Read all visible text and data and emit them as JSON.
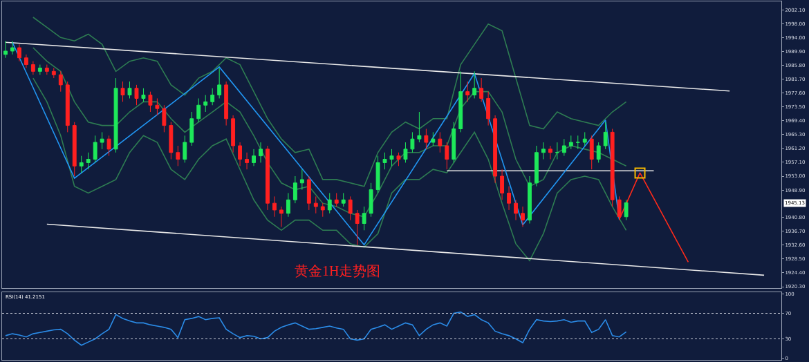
{
  "chart_data": [
    {
      "type": "candlestick",
      "categories": [
        null,
        null,
        null,
        null,
        null,
        null,
        null,
        null,
        null,
        null,
        null,
        null,
        null,
        null,
        null,
        null,
        null,
        null,
        null,
        null,
        null,
        null,
        null,
        null,
        null,
        null,
        null,
        null,
        null,
        null,
        null,
        null,
        null,
        null,
        null,
        null,
        null,
        null,
        null,
        null,
        null,
        null,
        null,
        null,
        null,
        null,
        null,
        null,
        null,
        null,
        null,
        null,
        null,
        null,
        null,
        null,
        null,
        null,
        null,
        null,
        null,
        null,
        null,
        null,
        null,
        null,
        null,
        null,
        null,
        null,
        null,
        null,
        null,
        null,
        null,
        null,
        null,
        null,
        null,
        null,
        null,
        null,
        null,
        null,
        null,
        null,
        null,
        null,
        null,
        null,
        null,
        null,
        null,
        null,
        null,
        null,
        null,
        null,
        null,
        null,
        null,
        null,
        null,
        null,
        null,
        null,
        null,
        null,
        null,
        null,
        null
      ],
      "ohlc": [
        [
          1989,
          1993,
          1988,
          1990
        ],
        [
          1990,
          1993,
          1989,
          1991
        ],
        [
          1991,
          1992,
          1987,
          1988
        ],
        [
          1988,
          1989,
          1985,
          1986
        ],
        [
          1986,
          1987,
          1983,
          1984
        ],
        [
          1984,
          1986,
          1983,
          1985
        ],
        [
          1985,
          1986,
          1983,
          1984
        ],
        [
          1984,
          1985,
          1982,
          1983
        ],
        [
          1983,
          1984,
          1978,
          1980
        ],
        [
          1980,
          1981,
          1966,
          1968
        ],
        [
          1968,
          1969,
          1953,
          1956
        ],
        [
          1956,
          1959,
          1954,
          1957
        ],
        [
          1957,
          1960,
          1955,
          1958
        ],
        [
          1958,
          1965,
          1957,
          1963
        ],
        [
          1963,
          1966,
          1961,
          1964
        ],
        [
          1964,
          1965,
          1959,
          1961
        ],
        [
          1961,
          1982,
          1960,
          1979
        ],
        [
          1979,
          1981,
          1975,
          1977
        ],
        [
          1977,
          1981,
          1976,
          1979
        ],
        [
          1979,
          1980,
          1974,
          1976
        ],
        [
          1976,
          1979,
          1975,
          1977
        ],
        [
          1977,
          1978,
          1972,
          1974
        ],
        [
          1974,
          1976,
          1971,
          1973
        ],
        [
          1973,
          1974,
          1966,
          1968
        ],
        [
          1968,
          1969,
          1958,
          1960
        ],
        [
          1960,
          1962,
          1956,
          1958
        ],
        [
          1958,
          1965,
          1957,
          1963
        ],
        [
          1963,
          1972,
          1962,
          1970
        ],
        [
          1970,
          1976,
          1969,
          1974
        ],
        [
          1974,
          1977,
          1972,
          1975
        ],
        [
          1975,
          1979,
          1974,
          1977
        ],
        [
          1977,
          1985,
          1976,
          1980
        ],
        [
          1980,
          1981,
          1968,
          1970
        ],
        [
          1970,
          1971,
          1960,
          1962
        ],
        [
          1962,
          1963,
          1956,
          1958
        ],
        [
          1958,
          1960,
          1955,
          1957
        ],
        [
          1957,
          1961,
          1956,
          1959
        ],
        [
          1959,
          1963,
          1957,
          1961
        ],
        [
          1961,
          1962,
          1943,
          1945
        ],
        [
          1945,
          1947,
          1941,
          1943
        ],
        [
          1943,
          1944,
          1938,
          1942
        ],
        [
          1942,
          1948,
          1941,
          1946
        ],
        [
          1946,
          1953,
          1945,
          1951
        ],
        [
          1951,
          1955,
          1949,
          1952
        ],
        [
          1952,
          1953,
          1943,
          1945
        ],
        [
          1945,
          1947,
          1942,
          1944
        ],
        [
          1944,
          1945,
          1941,
          1943
        ],
        [
          1943,
          1948,
          1942,
          1946
        ],
        [
          1946,
          1948,
          1944,
          1945
        ],
        [
          1945,
          1948,
          1944,
          1946
        ],
        [
          1946,
          1947,
          1940,
          1942
        ],
        [
          1942,
          1943,
          1932.6,
          1939
        ],
        [
          1939,
          1944,
          1937,
          1942
        ],
        [
          1942,
          1951,
          1941,
          1949
        ],
        [
          1949,
          1959,
          1948,
          1957
        ],
        [
          1957,
          1960,
          1955,
          1958
        ],
        [
          1958,
          1961,
          1956,
          1959
        ],
        [
          1959,
          1960,
          1956,
          1958
        ],
        [
          1958,
          1963,
          1957,
          1961
        ],
        [
          1961,
          1966,
          1960,
          1964
        ],
        [
          1964,
          1972,
          1963,
          1965
        ],
        [
          1965,
          1967,
          1961,
          1963
        ],
        [
          1963,
          1966,
          1962,
          1964
        ],
        [
          1964,
          1966,
          1960,
          1962
        ],
        [
          1962,
          1963,
          1955,
          1958
        ],
        [
          1958,
          1969,
          1957,
          1967
        ],
        [
          1967,
          1984,
          1966,
          1978
        ],
        [
          1978,
          1981,
          1975,
          1977
        ],
        [
          1977,
          1984,
          1976,
          1979
        ],
        [
          1979,
          1982,
          1975,
          1976
        ],
        [
          1976,
          1978,
          1968,
          1970
        ],
        [
          1970,
          1971,
          1951,
          1953
        ],
        [
          1953,
          1955,
          1946,
          1948
        ],
        [
          1948,
          1950,
          1943,
          1945
        ],
        [
          1945,
          1946,
          1940,
          1942
        ],
        [
          1942,
          1944,
          1938,
          1940
        ],
        [
          1940,
          1953,
          1939,
          1951
        ],
        [
          1951,
          1962,
          1950,
          1960
        ],
        [
          1960,
          1963,
          1958,
          1961
        ],
        [
          1961,
          1962,
          1958,
          1960
        ],
        [
          1960,
          1963,
          1958,
          1960
        ],
        [
          1960,
          1964,
          1959,
          1962
        ],
        [
          1962,
          1965,
          1961,
          1963
        ],
        [
          1963,
          1965,
          1961,
          1963
        ],
        [
          1963,
          1966,
          1962,
          1964
        ],
        [
          1964,
          1965,
          1955,
          1958
        ],
        [
          1958,
          1963,
          1957,
          1962
        ],
        [
          1962,
          1969,
          1961,
          1966
        ],
        [
          1966,
          1967,
          1944,
          1946
        ],
        [
          1946,
          1947,
          1940,
          1941
        ],
        [
          1941,
          1946,
          1940,
          1945.13
        ],
        null,
        null,
        null,
        null,
        null,
        null,
        null,
        null,
        null,
        null,
        null,
        null,
        null,
        null,
        null,
        null,
        null,
        null,
        null,
        null
      ],
      "colors": [
        "#1ee85a",
        "#1ee85a",
        "#ff2020",
        "#ff2020",
        "#ff2020",
        "#1ee85a",
        "#ff2020",
        "#ff2020",
        "#ff2020",
        "#ff2020",
        "#ff2020",
        "#1ee85a",
        "#1ee85a",
        "#1ee85a",
        "#1ee85a",
        "#ff2020",
        "#1ee85a",
        "#ff2020",
        "#1ee85a",
        "#ff2020",
        "#1ee85a",
        "#ff2020",
        "#ff2020",
        "#ff2020",
        "#ff2020",
        "#ff2020",
        "#1ee85a",
        "#1ee85a",
        "#1ee85a",
        "#1ee85a",
        "#1ee85a",
        "#1ee85a",
        "#ff2020",
        "#ff2020",
        "#ff2020",
        "#ff2020",
        "#1ee85a",
        "#1ee85a",
        "#ff2020",
        "#ff2020",
        "#ff2020",
        "#1ee85a",
        "#1ee85a",
        "#1ee85a",
        "#ff2020",
        "#ff2020",
        "#ff2020",
        "#1ee85a",
        "#ff2020",
        "#1ee85a",
        "#ff2020",
        "#ff2020",
        "#1ee85a",
        "#1ee85a",
        "#1ee85a",
        "#1ee85a",
        "#1ee85a",
        "#ff2020",
        "#1ee85a",
        "#1ee85a",
        "#1ee85a",
        "#ff2020",
        "#1ee85a",
        "#ff2020",
        "#ff2020",
        "#1ee85a",
        "#1ee85a",
        "#ff2020",
        "#1ee85a",
        "#ff2020",
        "#ff2020",
        "#ff2020",
        "#ff2020",
        "#ff2020",
        "#ff2020",
        "#ff2020",
        "#1ee85a",
        "#1ee85a",
        "#1ee85a",
        "#ff2020",
        "#1ee85a",
        "#1ee85a",
        "#1ee85a",
        "#1ee85a",
        "#1ee85a",
        "#ff2020",
        "#1ee85a",
        "#1ee85a",
        "#ff2020",
        "#ff2020",
        "#1ee85a",
        null,
        null,
        null,
        null,
        null,
        null,
        null,
        null,
        null,
        null,
        null,
        null,
        null,
        null,
        null,
        null,
        null,
        null,
        null,
        null
      ],
      "series": [
        {
          "type": "line",
          "color": "#2e7d52",
          "values": [
            null,
            null,
            null,
            null,
            2000,
            null,
            1997,
            null,
            1994,
            null,
            1993,
            null,
            1995,
            null,
            1992,
            null,
            1984,
            null,
            1987,
            null,
            1988,
            null,
            1987,
            null,
            1980,
            null,
            1977,
            null,
            1982,
            null,
            1984,
            null,
            1988,
            null,
            1986,
            null,
            1978,
            null,
            1970,
            null,
            1964,
            null,
            1960,
            null,
            1961,
            null,
            1952,
            null,
            1952,
            null,
            1951,
            null,
            1950,
            null,
            1960,
            null,
            1966,
            null,
            1969,
            null,
            1967,
            null,
            1970,
            null,
            1970,
            null,
            1986,
            null,
            1992,
            null,
            1998,
            null,
            1996,
            null,
            1982,
            null,
            1968,
            null,
            1967,
            null,
            1972,
            null,
            1970,
            null,
            1969,
            null,
            1968,
            null,
            1972,
            null,
            1975,
            null,
            null,
            null,
            null,
            null,
            null,
            null,
            null,
            null,
            null,
            null,
            null,
            null,
            null,
            null,
            null,
            null,
            null,
            null,
            null
          ]
        },
        {
          "type": "line",
          "color": "#2e7d52",
          "values": [
            null,
            null,
            null,
            null,
            1991,
            null,
            1987,
            null,
            1984,
            null,
            1975,
            null,
            1969,
            null,
            1968,
            null,
            1968,
            null,
            1972,
            null,
            1975,
            null,
            1975,
            null,
            1970,
            null,
            1966,
            null,
            1969,
            null,
            1972,
            null,
            1975,
            null,
            1972,
            null,
            1965,
            null,
            1957,
            null,
            1951,
            null,
            1949,
            null,
            1950,
            null,
            1945,
            null,
            1944,
            null,
            1942,
            null,
            1941,
            null,
            1948,
            null,
            1956,
            null,
            1960,
            null,
            1960,
            null,
            1962,
            null,
            1962,
            null,
            1973,
            null,
            1978,
            null,
            1978,
            null,
            1972,
            null,
            1958,
            null,
            1950,
            null,
            1952,
            null,
            1960,
            null,
            1962,
            null,
            1961,
            null,
            1960,
            null,
            1958,
            null,
            1956,
            null,
            null,
            null,
            null,
            null,
            null,
            null,
            null,
            null,
            null,
            null,
            null,
            null,
            null,
            null,
            null,
            null,
            null,
            null,
            null
          ]
        },
        {
          "type": "line",
          "color": "#2e7d52",
          "values": [
            null,
            null,
            null,
            null,
            1982,
            null,
            1975,
            null,
            1965,
            null,
            1950,
            null,
            1948,
            null,
            1950,
            null,
            1952,
            null,
            1960,
            null,
            1965,
            null,
            1963,
            null,
            1955,
            null,
            1952,
            null,
            1958,
            null,
            1962,
            null,
            1964,
            null,
            1955,
            null,
            1946,
            null,
            1940,
            null,
            1937,
            null,
            1940,
            null,
            1940,
            null,
            1937,
            null,
            1937,
            null,
            1933,
            null,
            1932,
            null,
            1936,
            null,
            1948,
            null,
            1952,
            null,
            1952,
            null,
            1955,
            null,
            1954,
            null,
            1960,
            null,
            1966,
            null,
            1958,
            null,
            1945,
            null,
            1933,
            null,
            1928,
            null,
            1936,
            null,
            1948,
            null,
            1952,
            null,
            1953,
            null,
            1952,
            null,
            1944,
            null,
            1937,
            null,
            null,
            null,
            null,
            null,
            null,
            null,
            null,
            null,
            null,
            null,
            null,
            null,
            null,
            null,
            null,
            null,
            null,
            null,
            null
          ]
        },
        {
          "type": "line",
          "color": "#e8e8e8",
          "values": [
            1992.6,
            null,
            null,
            null,
            null,
            null,
            null,
            null,
            null,
            null,
            null,
            null,
            null,
            null,
            null,
            null,
            null,
            null,
            null,
            null,
            null,
            null,
            null,
            null,
            null,
            null,
            null,
            null,
            null,
            null,
            null,
            null,
            null,
            null,
            null,
            null,
            null,
            null,
            null,
            null,
            null,
            null,
            null,
            null,
            null,
            null,
            null,
            null,
            null,
            null,
            null,
            null,
            null,
            null,
            null,
            null,
            null,
            null,
            null,
            null,
            null,
            null,
            null,
            null,
            null,
            null,
            null,
            null,
            null,
            null,
            null,
            null,
            null,
            null,
            null,
            null,
            null,
            null,
            null,
            null,
            null,
            null,
            null,
            null,
            null,
            null,
            null,
            null,
            null,
            null,
            null,
            null,
            null,
            null,
            null,
            null,
            null,
            null,
            null,
            null,
            null,
            null,
            null,
            null,
            null,
            1978.2,
            null,
            null,
            null,
            null,
            null
          ]
        },
        {
          "type": "line",
          "color": "#e8e8e8",
          "values": [
            null,
            null,
            null,
            null,
            null,
            null,
            1938.8,
            null,
            null,
            null,
            null,
            null,
            null,
            null,
            null,
            null,
            null,
            null,
            null,
            null,
            null,
            null,
            null,
            null,
            null,
            null,
            null,
            null,
            null,
            null,
            null,
            null,
            null,
            null,
            null,
            null,
            null,
            null,
            null,
            null,
            null,
            null,
            null,
            null,
            null,
            null,
            null,
            null,
            null,
            null,
            null,
            null,
            null,
            null,
            null,
            null,
            null,
            null,
            null,
            null,
            null,
            null,
            null,
            null,
            null,
            null,
            null,
            null,
            null,
            null,
            null,
            null,
            null,
            null,
            null,
            null,
            null,
            null,
            null,
            null,
            null,
            null,
            null,
            null,
            null,
            null,
            null,
            null,
            null,
            null,
            null,
            null,
            null,
            null,
            null,
            null,
            null,
            null,
            null,
            null,
            null,
            null,
            null,
            null,
            null,
            null,
            null,
            null,
            null,
            null,
            1923.7
          ]
        },
        {
          "type": "line",
          "color": "#e8e8e8",
          "values": [
            null,
            null,
            null,
            null,
            null,
            null,
            null,
            null,
            null,
            null,
            null,
            null,
            null,
            null,
            null,
            null,
            null,
            null,
            null,
            null,
            null,
            null,
            null,
            null,
            null,
            null,
            null,
            null,
            null,
            null,
            null,
            null,
            null,
            null,
            null,
            null,
            null,
            null,
            null,
            null,
            null,
            null,
            null,
            null,
            null,
            null,
            null,
            null,
            null,
            null,
            null,
            null,
            null,
            null,
            null,
            null,
            null,
            null,
            null,
            null,
            null,
            null,
            null,
            null,
            1954.6,
            null,
            null,
            null,
            null,
            null,
            null,
            null,
            null,
            null,
            null,
            null,
            null,
            null,
            null,
            null,
            null,
            null,
            null,
            null,
            null,
            null,
            null,
            null,
            null,
            null,
            null,
            null,
            null,
            null,
            1954.6,
            null,
            null,
            null,
            null,
            null,
            null,
            null,
            null,
            null,
            null,
            null,
            null,
            null,
            null,
            null,
            null
          ]
        },
        {
          "type": "line",
          "color": "#2196f3",
          "values": [
            null,
            1992.6,
            null,
            null,
            null,
            null,
            null,
            null,
            null,
            null,
            1952.4,
            null,
            null,
            null,
            null,
            null,
            null,
            null,
            null,
            null,
            null,
            null,
            null,
            null,
            null,
            null,
            null,
            null,
            null,
            null,
            null,
            1985.3,
            null,
            null,
            null,
            null,
            null,
            null,
            null,
            null,
            null,
            null,
            null,
            null,
            null,
            null,
            null,
            null,
            null,
            null,
            null,
            null,
            1932.7,
            null,
            null,
            null,
            null,
            null,
            null,
            null,
            null,
            null,
            null,
            null,
            null,
            null,
            null,
            null,
            1983.4,
            null,
            null,
            null,
            null,
            null,
            null,
            1938.6,
            null,
            null,
            null,
            null,
            null,
            null,
            null,
            null,
            null,
            null,
            null,
            1969.6,
            null,
            1940.2,
            null,
            null,
            null,
            null,
            null,
            null,
            null,
            null,
            null,
            null,
            null,
            null,
            null,
            null,
            null,
            null,
            null,
            null,
            null,
            null,
            null
          ]
        },
        {
          "type": "line",
          "color": "#ff2a1a",
          "values": [
            null,
            null,
            null,
            null,
            null,
            null,
            null,
            null,
            null,
            null,
            null,
            null,
            null,
            null,
            null,
            null,
            null,
            null,
            null,
            null,
            null,
            null,
            null,
            null,
            null,
            null,
            null,
            null,
            null,
            null,
            null,
            null,
            null,
            null,
            null,
            null,
            null,
            null,
            null,
            null,
            null,
            null,
            null,
            null,
            null,
            null,
            null,
            null,
            null,
            null,
            null,
            null,
            null,
            null,
            null,
            null,
            null,
            null,
            null,
            null,
            null,
            null,
            null,
            null,
            null,
            null,
            null,
            null,
            null,
            null,
            null,
            null,
            null,
            null,
            null,
            null,
            null,
            null,
            null,
            null,
            null,
            null,
            null,
            null,
            null,
            null,
            null,
            null,
            null,
            1940.2,
            null,
            null,
            1954.0,
            null,
            null,
            null,
            null,
            null,
            null,
            1927.6,
            null,
            null,
            null,
            null,
            null,
            null,
            null,
            null,
            null,
            null,
            null
          ]
        },
        {
          "type": "scatter",
          "marker": "square",
          "color": "#f5b800",
          "values": [
            null,
            null,
            null,
            null,
            null,
            null,
            null,
            null,
            null,
            null,
            null,
            null,
            null,
            null,
            null,
            null,
            null,
            null,
            null,
            null,
            null,
            null,
            null,
            null,
            null,
            null,
            null,
            null,
            null,
            null,
            null,
            null,
            null,
            null,
            null,
            null,
            null,
            null,
            null,
            null,
            null,
            null,
            null,
            null,
            null,
            null,
            null,
            null,
            null,
            null,
            null,
            null,
            null,
            null,
            null,
            null,
            null,
            null,
            null,
            null,
            null,
            null,
            null,
            null,
            null,
            null,
            null,
            null,
            null,
            null,
            null,
            null,
            null,
            null,
            null,
            null,
            null,
            null,
            null,
            null,
            null,
            null,
            null,
            null,
            null,
            null,
            null,
            null,
            null,
            null,
            null,
            null,
            1953.9,
            null,
            null,
            null,
            null,
            null,
            null,
            null,
            null,
            null,
            null,
            null,
            null,
            null,
            null,
            null,
            null,
            null,
            null
          ]
        }
      ],
      "ylim": [
        1919.9,
        2004.7
      ],
      "yticks": [
        {
          "value": 2002.1,
          "label": "2002.10"
        },
        {
          "value": 1998,
          "label": "1998.00"
        },
        {
          "value": 1994,
          "label": "1994.00"
        },
        {
          "value": 1989.9,
          "label": "1989.90"
        },
        {
          "value": 1985.8,
          "label": "1985.80"
        },
        {
          "value": 1981.7,
          "label": "1981.70"
        },
        {
          "value": 1977.6,
          "label": "1977.60"
        },
        {
          "value": 1973.5,
          "label": "1973.50"
        },
        {
          "value": 1969.4,
          "label": "1969.40"
        },
        {
          "value": 1965.3,
          "label": "1965.30"
        },
        {
          "value": 1961.2,
          "label": "1961.20"
        },
        {
          "value": 1957.1,
          "label": "1957.10"
        },
        {
          "value": 1953,
          "label": "1953.00"
        },
        {
          "value": 1948.9,
          "label": "1948.90"
        },
        {
          "value": 1940.8,
          "label": "1940.80"
        },
        {
          "value": 1936.7,
          "label": "1936.70"
        },
        {
          "value": 1932.6,
          "label": "1932.60"
        },
        {
          "value": 1928.5,
          "label": "1928.50"
        },
        {
          "value": 1924.4,
          "label": "1924.40"
        },
        {
          "value": 1920.3,
          "label": "1920.30"
        }
      ],
      "tick_labels": "y",
      "grid": false,
      "annotations": [
        "黄金1H走势图",
        "1945.13"
      ]
    },
    {
      "type": "line",
      "categories": [
        null,
        null,
        null,
        null,
        null,
        null,
        null,
        null,
        null,
        null,
        null,
        null,
        null,
        null,
        null,
        null,
        null,
        null,
        null,
        null,
        null,
        null,
        null,
        null,
        null,
        null,
        null,
        null,
        null,
        null,
        null,
        null,
        null,
        null,
        null,
        null,
        null,
        null,
        null,
        null,
        null,
        null,
        null,
        null,
        null,
        null,
        null,
        null,
        null,
        null,
        null,
        null,
        null,
        null,
        null,
        null,
        null,
        null,
        null,
        null,
        null,
        null,
        null,
        null,
        null,
        null,
        null,
        null,
        null,
        null,
        null,
        null,
        null,
        null,
        null,
        null,
        null,
        null,
        null,
        null,
        null,
        null,
        null,
        null,
        null,
        null,
        null,
        null,
        null,
        null,
        null,
        null,
        null,
        null,
        null,
        null,
        null,
        null,
        null,
        null,
        null,
        null,
        null,
        null,
        null,
        null,
        null,
        null,
        null,
        null,
        null
      ],
      "color": "#2b8ce8",
      "values": [
        35,
        38,
        36,
        33,
        38,
        40,
        42,
        44,
        45,
        38,
        28,
        20,
        25,
        30,
        38,
        45,
        68,
        62,
        58,
        55,
        55,
        52,
        50,
        48,
        45,
        32,
        60,
        62,
        65,
        60,
        62,
        63,
        45,
        38,
        32,
        35,
        34,
        30,
        32,
        42,
        48,
        52,
        55,
        50,
        45,
        46,
        48,
        50,
        47,
        45,
        30,
        28,
        30,
        45,
        48,
        52,
        45,
        50,
        55,
        52,
        35,
        45,
        52,
        55,
        50,
        70,
        72,
        65,
        68,
        60,
        55,
        42,
        38,
        35,
        30,
        24,
        45,
        60,
        58,
        57,
        58,
        60,
        56,
        58,
        58,
        40,
        45,
        60,
        35,
        33,
        41,
        null,
        null,
        null,
        null,
        null,
        null,
        null,
        null,
        null,
        null,
        null,
        null,
        null,
        null,
        null,
        null,
        null,
        null,
        null,
        null
      ],
      "ylim": [
        -3,
        103
      ],
      "yticks": [
        0,
        30,
        70,
        100
      ],
      "ref_lines": [
        {
          "axis": "y",
          "value": 30,
          "line_style": "dotted",
          "color": "#c8ccd8"
        },
        {
          "axis": "y",
          "value": 70,
          "line_style": "dotted",
          "color": "#c8ccd8"
        }
      ],
      "tick_labels": "y",
      "grid": false,
      "annotations": [
        "RSI(14) 41.2151"
      ]
    }
  ]
}
